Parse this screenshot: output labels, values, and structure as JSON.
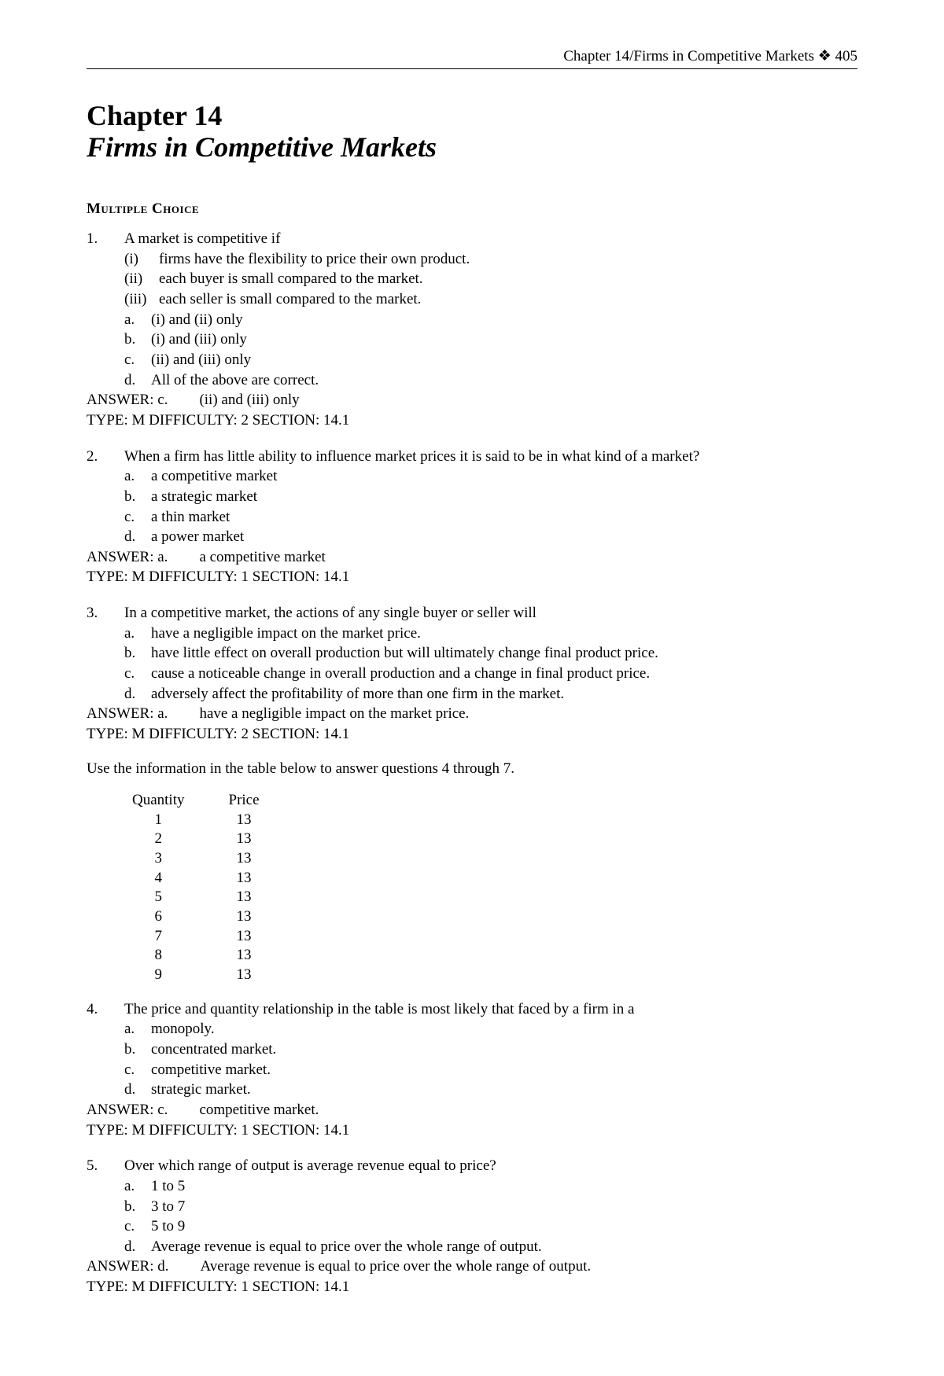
{
  "header": {
    "running_head": "Chapter 14/Firms in Competitive Markets ❖ 405"
  },
  "chapter": {
    "label": "Chapter 14",
    "title": "Firms in Competitive Markets"
  },
  "section_heading": "Multiple Choice",
  "questions": [
    {
      "num": "1.",
      "stem": "A market is competitive if",
      "roman": [
        {
          "label": "(i)",
          "text": "firms have the flexibility to price their own product."
        },
        {
          "label": "(ii)",
          "text": "each buyer is small compared to the market."
        },
        {
          "label": "(iii)",
          "text": "each seller is small compared to the market."
        }
      ],
      "options": [
        {
          "label": "a.",
          "text": "(i) and (ii) only"
        },
        {
          "label": "b.",
          "text": "(i) and (iii) only"
        },
        {
          "label": "c.",
          "text": "(ii) and (iii) only"
        },
        {
          "label": "d.",
          "text": "All of the above are correct."
        }
      ],
      "answer_label": "ANSWER: c.",
      "answer_text": "(ii) and (iii) only",
      "meta": "TYPE: M DIFFICULTY: 2 SECTION: 14.1"
    },
    {
      "num": "2.",
      "stem": "When a firm has little ability to influence market prices it is said to be in what kind of a market?",
      "options": [
        {
          "label": "a.",
          "text": "a competitive market"
        },
        {
          "label": "b.",
          "text": "a strategic market"
        },
        {
          "label": "c.",
          "text": "a thin market"
        },
        {
          "label": "d.",
          "text": "a power market"
        }
      ],
      "answer_label": "ANSWER: a.",
      "answer_text": "a competitive market",
      "meta": "TYPE: M DIFFICULTY: 1 SECTION: 14.1"
    },
    {
      "num": "3.",
      "stem": "In a competitive market, the actions of any single buyer or seller will",
      "options": [
        {
          "label": "a.",
          "text": "have a negligible impact on the market price."
        },
        {
          "label": "b.",
          "text": "have little effect on overall production but will ultimately change final product price."
        },
        {
          "label": "c.",
          "text": "cause a noticeable change in overall production and a change in final product price."
        },
        {
          "label": "d.",
          "text": "adversely affect the profitability of more than one firm in the market."
        }
      ],
      "answer_label": "ANSWER: a.",
      "answer_text": "have a negligible impact on the market price.",
      "meta": "TYPE: M DIFFICULTY: 2 SECTION: 14.1"
    }
  ],
  "table_intro": "Use the information in the table below to answer questions 4 through 7.",
  "table": {
    "columns": [
      "Quantity",
      "Price"
    ],
    "rows": [
      [
        "1",
        "13"
      ],
      [
        "2",
        "13"
      ],
      [
        "3",
        "13"
      ],
      [
        "4",
        "13"
      ],
      [
        "5",
        "13"
      ],
      [
        "6",
        "13"
      ],
      [
        "7",
        "13"
      ],
      [
        "8",
        "13"
      ],
      [
        "9",
        "13"
      ]
    ]
  },
  "questions2": [
    {
      "num": "4.",
      "stem": "The price and quantity relationship in the table is most likely that faced by a firm in a",
      "options": [
        {
          "label": "a.",
          "text": "monopoly."
        },
        {
          "label": "b.",
          "text": "concentrated market."
        },
        {
          "label": "c.",
          "text": "competitive market."
        },
        {
          "label": "d.",
          "text": "strategic market."
        }
      ],
      "answer_label": "ANSWER: c.",
      "answer_text": "competitive market.",
      "meta": "TYPE: M DIFFICULTY: 1 SECTION: 14.1"
    },
    {
      "num": "5.",
      "stem": "Over which range of output is average revenue equal to price?",
      "options": [
        {
          "label": "a.",
          "text": "1 to 5"
        },
        {
          "label": "b.",
          "text": "3 to 7"
        },
        {
          "label": "c.",
          "text": "5 to 9"
        },
        {
          "label": "d.",
          "text": "Average revenue is equal to price over the whole range of output."
        }
      ],
      "answer_label": "ANSWER: d.",
      "answer_text": "Average revenue is equal to price over the whole range of output.",
      "meta": "TYPE: M DIFFICULTY: 1 SECTION: 14.1"
    }
  ]
}
